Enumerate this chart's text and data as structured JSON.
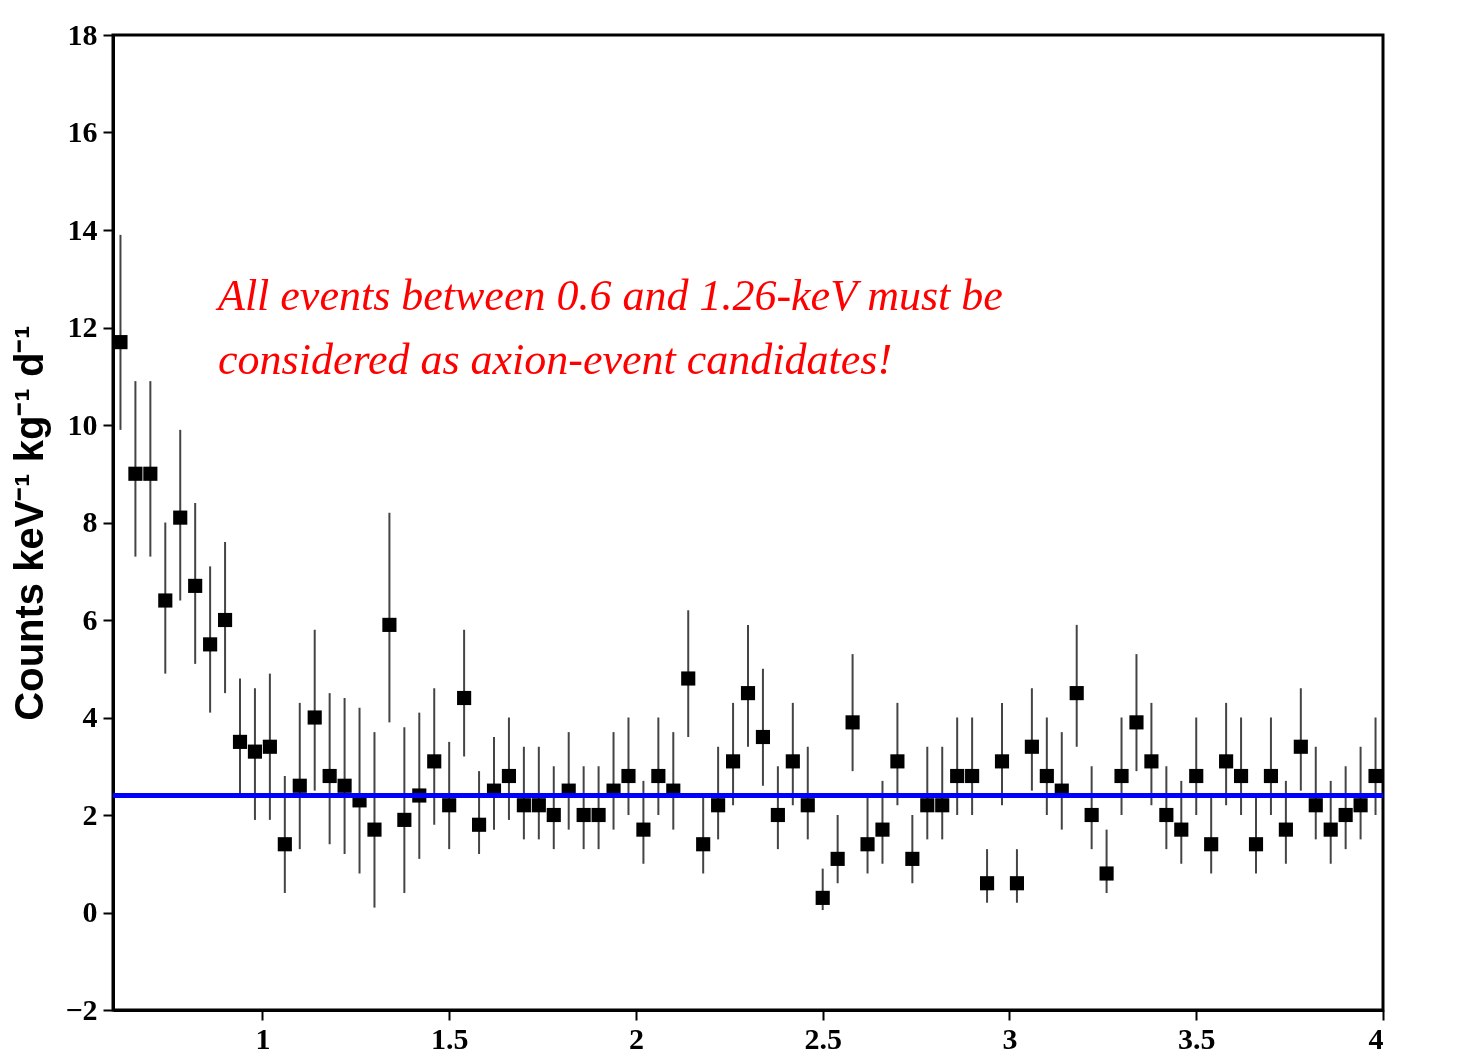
{
  "chart_data": {
    "type": "scatter",
    "ylabel": "Counts keV⁻¹ kg⁻¹ d⁻¹",
    "annotations": [
      "All events between 0.6 and 1.26-keV must be\nconsidered as axion-event candidates!"
    ],
    "x": [
      0.62,
      0.66,
      0.7,
      0.74,
      0.78,
      0.82,
      0.86,
      0.9,
      0.94,
      0.98,
      1.02,
      1.06,
      1.1,
      1.14,
      1.18,
      1.22,
      1.26,
      1.3,
      1.34,
      1.38,
      1.42,
      1.46,
      1.5,
      1.54,
      1.58,
      1.62,
      1.66,
      1.7,
      1.74,
      1.78,
      1.82,
      1.86,
      1.9,
      1.94,
      1.98,
      2.02,
      2.06,
      2.1,
      2.14,
      2.18,
      2.22,
      2.26,
      2.3,
      2.34,
      2.38,
      2.42,
      2.46,
      2.5,
      2.54,
      2.58,
      2.62,
      2.66,
      2.7,
      2.74,
      2.78,
      2.82,
      2.86,
      2.9,
      2.94,
      2.98,
      3.02,
      3.06,
      3.1,
      3.14,
      3.18,
      3.22,
      3.26,
      3.3,
      3.34,
      3.38,
      3.42,
      3.46,
      3.5,
      3.54,
      3.58,
      3.62,
      3.66,
      3.7,
      3.74,
      3.78,
      3.82,
      3.86,
      3.9,
      3.94,
      3.98
    ],
    "series": [
      {
        "color": "#000000",
        "values": [
          11.7,
          9.0,
          9.0,
          6.4,
          8.1,
          6.7,
          5.5,
          6.0,
          3.5,
          3.3,
          3.4,
          1.4,
          2.6,
          4.0,
          2.8,
          2.6,
          2.3,
          1.7,
          5.9,
          1.9,
          2.4,
          3.1,
          2.2,
          4.4,
          1.8,
          2.5,
          2.8,
          2.2,
          2.2,
          2.0,
          2.5,
          2.0,
          2.0,
          2.5,
          2.8,
          1.7,
          2.8,
          2.5,
          4.8,
          1.4,
          2.2,
          3.1,
          4.5,
          3.6,
          2.0,
          3.1,
          2.2,
          0.3,
          1.1,
          3.9,
          1.4,
          1.7,
          3.1,
          1.1,
          2.2,
          2.2,
          2.8,
          2.8,
          0.6,
          3.1,
          0.6,
          3.4,
          2.8,
          2.5,
          4.5,
          2.0,
          0.8,
          2.8,
          3.9,
          3.1,
          2.0,
          1.7,
          2.8,
          1.4,
          3.1,
          2.8,
          1.4,
          2.8,
          1.7,
          3.4,
          2.2,
          1.7,
          2.0,
          2.2,
          2.8
        ],
        "errors": [
          [
            9.9,
            13.9
          ],
          [
            7.3,
            10.9
          ],
          [
            7.3,
            10.9
          ],
          [
            4.9,
            8.0
          ],
          [
            6.4,
            9.9
          ],
          [
            5.1,
            8.4
          ],
          [
            4.1,
            7.1
          ],
          [
            4.5,
            7.6
          ],
          [
            2.4,
            4.8
          ],
          [
            1.9,
            4.6
          ],
          [
            1.9,
            4.9
          ],
          [
            0.4,
            2.8
          ],
          [
            1.3,
            4.3
          ],
          [
            2.5,
            5.8
          ],
          [
            1.4,
            4.5
          ],
          [
            1.2,
            4.4
          ],
          [
            0.8,
            4.2
          ],
          [
            0.1,
            3.7
          ],
          [
            3.9,
            8.2
          ],
          [
            0.4,
            3.8
          ],
          [
            1.1,
            4.1
          ],
          [
            1.8,
            4.6
          ],
          [
            1.3,
            3.5
          ],
          [
            3.2,
            5.8
          ],
          [
            1.2,
            2.9
          ],
          [
            1.7,
            3.6
          ],
          [
            1.9,
            4.0
          ],
          [
            1.5,
            3.4
          ],
          [
            1.5,
            3.4
          ],
          [
            1.3,
            3.0
          ],
          [
            1.7,
            3.7
          ],
          [
            1.3,
            3.0
          ],
          [
            1.3,
            3.0
          ],
          [
            1.7,
            3.7
          ],
          [
            2.0,
            4.0
          ],
          [
            1.0,
            2.7
          ],
          [
            2.0,
            4.0
          ],
          [
            1.7,
            3.7
          ],
          [
            3.6,
            6.2
          ],
          [
            0.8,
            2.4
          ],
          [
            1.5,
            3.4
          ],
          [
            2.2,
            4.3
          ],
          [
            3.4,
            5.9
          ],
          [
            2.6,
            5.0
          ],
          [
            1.3,
            3.0
          ],
          [
            2.2,
            4.3
          ],
          [
            1.5,
            3.4
          ],
          [
            0.05,
            0.9
          ],
          [
            0.6,
            2.0
          ],
          [
            2.9,
            5.3
          ],
          [
            0.8,
            2.4
          ],
          [
            1.0,
            2.7
          ],
          [
            2.2,
            4.3
          ],
          [
            0.6,
            2.0
          ],
          [
            1.5,
            3.4
          ],
          [
            1.5,
            3.4
          ],
          [
            2.0,
            4.0
          ],
          [
            2.0,
            4.0
          ],
          [
            0.2,
            1.3
          ],
          [
            2.2,
            4.3
          ],
          [
            0.2,
            1.3
          ],
          [
            2.5,
            4.6
          ],
          [
            2.0,
            4.0
          ],
          [
            1.7,
            3.7
          ],
          [
            3.4,
            5.9
          ],
          [
            1.3,
            3.0
          ],
          [
            0.4,
            1.7
          ],
          [
            2.0,
            4.0
          ],
          [
            2.9,
            5.3
          ],
          [
            2.2,
            4.3
          ],
          [
            1.3,
            3.0
          ],
          [
            1.0,
            2.7
          ],
          [
            2.0,
            4.0
          ],
          [
            0.8,
            2.4
          ],
          [
            2.2,
            4.3
          ],
          [
            2.0,
            4.0
          ],
          [
            0.8,
            2.4
          ],
          [
            2.0,
            4.0
          ],
          [
            1.0,
            2.7
          ],
          [
            2.5,
            4.6
          ],
          [
            1.5,
            3.4
          ],
          [
            1.0,
            2.7
          ],
          [
            1.3,
            3.0
          ],
          [
            1.5,
            3.4
          ],
          [
            2.0,
            4.0
          ]
        ]
      }
    ],
    "marker": "square",
    "xlim": [
      0.6,
      4
    ],
    "xticks": [
      1,
      1.5,
      2,
      2.5,
      3,
      3.5,
      4
    ],
    "ylim": [
      -2,
      18
    ],
    "yticks": [
      -2,
      0,
      2,
      4,
      6,
      8,
      10,
      12,
      14,
      16,
      18
    ],
    "ref_lines": [
      {
        "axis": "y",
        "value": 2.4,
        "color": "#0000ff"
      }
    ]
  }
}
